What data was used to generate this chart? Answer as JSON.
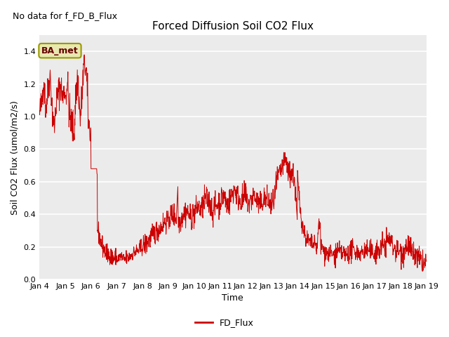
{
  "title": "Forced Diffusion Soil CO2 Flux",
  "no_data_label": "No data for f_FD_B_Flux",
  "xlabel": "Time",
  "ylabel": "Soil CO2 Flux (umol/m2/s)",
  "ylim": [
    0.0,
    1.5
  ],
  "yticks": [
    0.0,
    0.2,
    0.4,
    0.6,
    0.8,
    1.0,
    1.2,
    1.4
  ],
  "line_color": "#cc0000",
  "legend_label": "FD_Flux",
  "plot_bg": "#ebebeb",
  "grid_color": "#ffffff",
  "annotation_text": "BA_met",
  "annotation_box_color": "#e8e8b0",
  "annotation_box_edge": "#999900",
  "annotation_text_color": "#660000",
  "x_tick_labels": [
    "Jan 4",
    "Jan 5",
    "Jan 6",
    "Jan 7",
    "Jan 8",
    "Jan 9",
    "Jan 10",
    "Jan 11",
    "Jan 12",
    "Jan 13",
    "Jan 14",
    "Jan 15",
    "Jan 16",
    "Jan 17",
    "Jan 18",
    "Jan 19"
  ],
  "tick_fontsize": 8,
  "label_fontsize": 9,
  "title_fontsize": 11,
  "no_data_fontsize": 9,
  "legend_fontsize": 9,
  "annotation_fontsize": 9,
  "seed": 42,
  "n_per_day": 96,
  "n_days": 15
}
